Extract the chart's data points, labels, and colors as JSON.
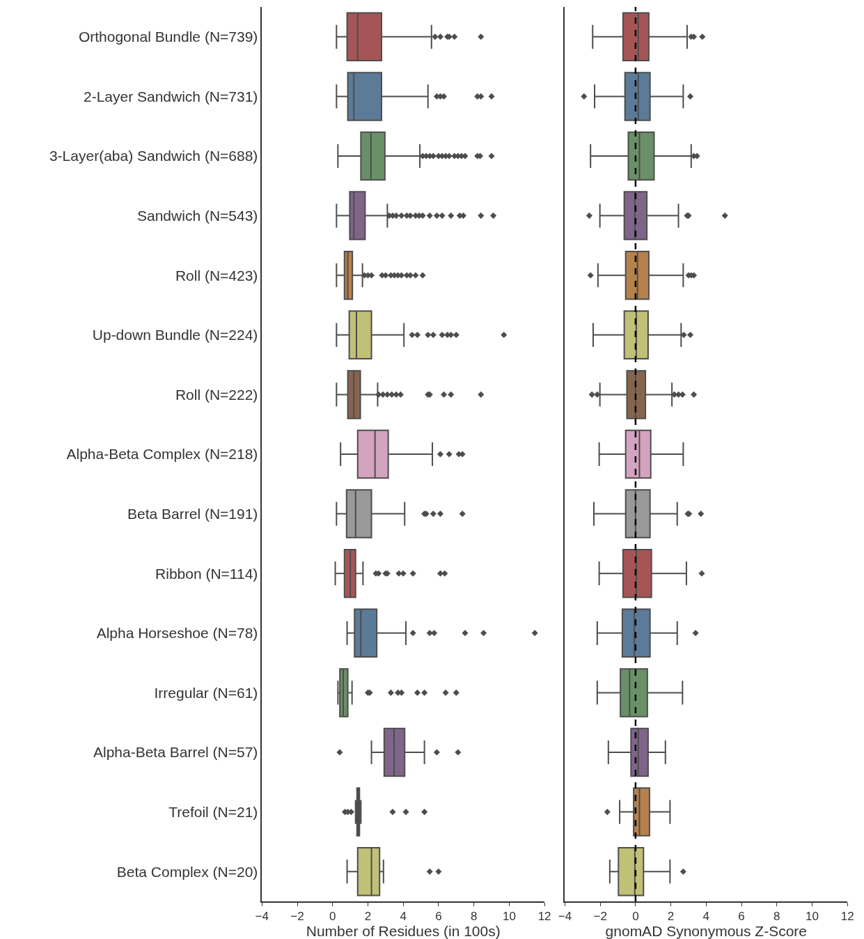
{
  "chart_data": [
    {
      "type": "box",
      "orientation": "horizontal",
      "marker": "diamond",
      "xlabel": "Number of Residues (in 100s)",
      "categories": [
        "Orthogonal Bundle (N=739)",
        "2-Layer Sandwich (N=731)",
        "3-Layer(aba) Sandwich (N=688)",
        "Sandwich (N=543)",
        "Roll (N=423)",
        "Up-down Bundle (N=224)",
        "Roll (N=222)",
        "Alpha-Beta Complex (N=218)",
        "Beta Barrel (N=191)",
        "Ribbon (N=114)",
        "Alpha Horseshoe (N=78)",
        "Irregular (N=61)",
        "Alpha-Beta Barrel (N=57)",
        "Trefoil (N=21)",
        "Beta Complex (N=20)"
      ],
      "colors": [
        "#a65557",
        "#5b7b98",
        "#6a9067",
        "#80658a",
        "#b5824d",
        "#c1c077",
        "#86654f",
        "#d4a3bf",
        "#999999",
        "#a65557",
        "#5b7b98",
        "#6a9067",
        "#80658a",
        "#b5824d",
        "#c1c077"
      ],
      "xlim": [
        -4,
        12
      ],
      "xticks": [
        -4,
        -2,
        0,
        2,
        4,
        6,
        8,
        10,
        12
      ],
      "boxes": [
        {
          "low": 0.22,
          "q1": 0.82,
          "median": 1.42,
          "q3": 2.77,
          "high": 5.6,
          "outliers": [
            5.8,
            6.1,
            6.5,
            6.6,
            6.9,
            8.4
          ]
        },
        {
          "low": 0.22,
          "q1": 0.86,
          "median": 1.2,
          "q3": 2.77,
          "high": 5.4,
          "outliers": [
            5.9,
            6.1,
            6.3,
            8.2,
            8.4,
            9.0
          ]
        },
        {
          "low": 0.3,
          "q1": 1.6,
          "median": 2.17,
          "q3": 2.96,
          "high": 4.94,
          "outliers": [
            5.1,
            5.3,
            5.5,
            5.7,
            6.0,
            6.2,
            6.4,
            6.6,
            6.9,
            7.1,
            7.3,
            7.5,
            8.2,
            8.35,
            9.0
          ]
        },
        {
          "low": 0.22,
          "q1": 0.97,
          "median": 1.2,
          "q3": 1.84,
          "high": 3.1,
          "outliers": [
            3.2,
            3.4,
            3.6,
            3.9,
            4.2,
            4.4,
            4.7,
            4.9,
            5.1,
            5.5,
            5.9,
            6.2,
            6.7,
            7.2,
            7.4,
            8.4,
            9.1
          ]
        },
        {
          "low": 0.22,
          "q1": 0.67,
          "median": 0.86,
          "q3": 1.12,
          "high": 1.69,
          "outliers": [
            1.8,
            2.0,
            2.2,
            2.8,
            3.0,
            3.3,
            3.5,
            3.7,
            3.9,
            4.2,
            4.4,
            4.7,
            5.1
          ]
        },
        {
          "low": 0.22,
          "q1": 0.94,
          "median": 1.35,
          "q3": 2.2,
          "high": 4.04,
          "outliers": [
            4.5,
            4.8,
            5.4,
            5.7,
            6.2,
            6.5,
            6.7,
            7.0,
            9.7
          ]
        },
        {
          "low": 0.22,
          "q1": 0.86,
          "median": 1.2,
          "q3": 1.57,
          "high": 2.55,
          "outliers": [
            2.6,
            2.85,
            3.1,
            3.35,
            3.6,
            3.85,
            5.4,
            5.5,
            6.3,
            6.7,
            8.4
          ]
        },
        {
          "low": 0.45,
          "q1": 1.42,
          "median": 2.4,
          "q3": 3.15,
          "high": 5.65,
          "outliers": [
            6.1,
            6.6,
            7.15,
            7.35
          ]
        },
        {
          "low": 0.22,
          "q1": 0.79,
          "median": 1.3,
          "q3": 2.2,
          "high": 4.08,
          "outliers": [
            5.2,
            5.3,
            5.7,
            6.1,
            7.35
          ]
        },
        {
          "low": 0.15,
          "q1": 0.67,
          "median": 1.0,
          "q3": 1.3,
          "high": 1.72,
          "outliers": [
            2.45,
            2.6,
            3.0,
            3.1,
            3.75,
            4.0,
            4.55,
            6.1,
            6.35
          ]
        },
        {
          "low": 0.82,
          "q1": 1.24,
          "median": 1.6,
          "q3": 2.5,
          "high": 4.15,
          "outliers": [
            4.55,
            5.5,
            5.75,
            7.5,
            8.55,
            11.45
          ]
        },
        {
          "low": 0.3,
          "q1": 0.41,
          "median": 0.6,
          "q3": 0.86,
          "high": 1.1,
          "outliers": [
            2.0,
            2.1,
            3.3,
            3.7,
            3.9,
            4.8,
            5.2,
            6.4,
            7.0
          ]
        },
        {
          "low": 2.2,
          "q1": 2.92,
          "median": 3.48,
          "q3": 4.08,
          "high": 5.2,
          "outliers": [
            0.4,
            5.9,
            7.1
          ]
        },
        {
          "low": 1.3,
          "q1": 1.38,
          "median": 1.45,
          "q3": 1.52,
          "high": 1.6,
          "outliers": [
            0.7,
            0.86,
            1.05,
            3.4,
            4.15,
            5.2
          ]
        },
        {
          "low": 0.82,
          "q1": 1.42,
          "median": 2.2,
          "q3": 2.66,
          "high": 2.88,
          "outliers": [
            5.5,
            6.0
          ]
        }
      ]
    },
    {
      "type": "box",
      "orientation": "horizontal",
      "marker": "diamond",
      "xlabel": "gnomAD Synonymous Z-Score",
      "tick_labels": "x",
      "categories": [
        null,
        null,
        null,
        null,
        null,
        null,
        null,
        null,
        null,
        null,
        null,
        null,
        null,
        null,
        null
      ],
      "colors": [
        "#a65557",
        "#5b7b98",
        "#6a9067",
        "#80658a",
        "#b5824d",
        "#c1c077",
        "#86654f",
        "#d4a3bf",
        "#999999",
        "#a65557",
        "#5b7b98",
        "#6a9067",
        "#80658a",
        "#b5824d",
        "#c1c077"
      ],
      "xlim": [
        -4,
        12
      ],
      "xticks": [
        -4,
        -2,
        0,
        2,
        4,
        6,
        8,
        10,
        12
      ],
      "ref_lines": [
        {
          "axis": "x",
          "value": 0,
          "color": "#000000",
          "line_style": "dashed"
        }
      ],
      "boxes": [
        {
          "low": -2.43,
          "q1": -0.71,
          "median": 0.15,
          "q3": 0.75,
          "high": 2.92,
          "outliers": [
            3.15,
            3.3,
            3.78
          ]
        },
        {
          "low": -2.32,
          "q1": -0.6,
          "median": 0.15,
          "q3": 0.82,
          "high": 2.7,
          "outliers": [
            -2.92,
            3.1
          ]
        },
        {
          "low": -2.55,
          "q1": -0.41,
          "median": 0.22,
          "q3": 1.05,
          "high": 3.15,
          "outliers": [
            3.3,
            3.48
          ]
        },
        {
          "low": -2.02,
          "q1": -0.64,
          "median": -0.04,
          "q3": 0.64,
          "high": 2.43,
          "outliers": [
            -2.62,
            2.92,
            3.0,
            5.06
          ]
        },
        {
          "low": -2.13,
          "q1": -0.56,
          "median": 0.11,
          "q3": 0.75,
          "high": 2.7,
          "outliers": [
            -2.55,
            3.0,
            3.15,
            3.3
          ]
        },
        {
          "low": -2.4,
          "q1": -0.64,
          "median": 0.04,
          "q3": 0.71,
          "high": 2.58,
          "outliers": [
            2.73,
            3.1
          ]
        },
        {
          "low": -2.02,
          "q1": -0.49,
          "median": 0.0,
          "q3": 0.56,
          "high": 2.06,
          "outliers": [
            -2.47,
            -2.17,
            2.2,
            2.43,
            2.66,
            3.3
          ]
        },
        {
          "low": -2.06,
          "q1": -0.56,
          "median": 0.22,
          "q3": 0.86,
          "high": 2.7
        },
        {
          "low": -2.36,
          "q1": -0.56,
          "median": 0.0,
          "q3": 0.82,
          "high": 2.36,
          "outliers": [
            2.96,
            3.03,
            3.7
          ]
        },
        {
          "low": -2.06,
          "q1": -0.71,
          "median": 0.04,
          "q3": 0.9,
          "high": 2.88,
          "outliers": [
            3.75
          ]
        },
        {
          "low": -2.17,
          "q1": -0.75,
          "median": -0.07,
          "q3": 0.82,
          "high": 2.36,
          "outliers": [
            3.4
          ]
        },
        {
          "low": -2.17,
          "q1": -0.86,
          "median": -0.34,
          "q3": 0.67,
          "high": 2.66
        },
        {
          "low": -1.54,
          "q1": -0.26,
          "median": 0.15,
          "q3": 0.71,
          "high": 1.69
        },
        {
          "low": -0.9,
          "q1": -0.11,
          "median": 0.22,
          "q3": 0.79,
          "high": 1.95,
          "outliers": [
            -1.6
          ]
        },
        {
          "low": -1.46,
          "q1": -0.97,
          "median": -0.04,
          "q3": 0.45,
          "high": 1.95,
          "outliers": [
            2.7
          ]
        }
      ]
    }
  ]
}
